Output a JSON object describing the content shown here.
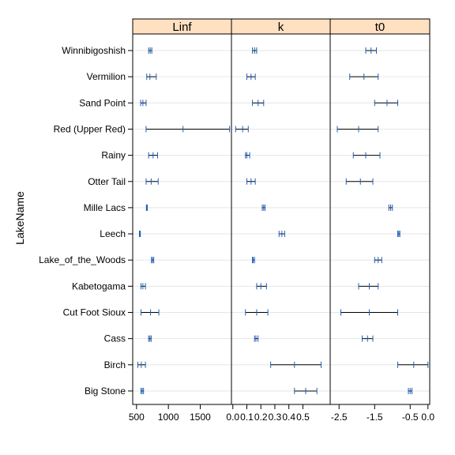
{
  "chart_data": {
    "type": "dotplot-interval",
    "ylabel": "LakeName",
    "lakes": [
      "Winnibigoshish",
      "Vermilion",
      "Sand Point",
      "Red (Upper Red)",
      "Rainy",
      "Otter Tail",
      "Mille Lacs",
      "Leech",
      "Lake_of_the_Woods",
      "Kabetogama",
      "Cut Foot Sioux",
      "Cass",
      "Birch",
      "Big Stone"
    ],
    "colors": {
      "strip": "#ffe0c0",
      "grid": "#e6e6e6",
      "interval": "#000000",
      "tick": "#1f5fb4"
    },
    "panels": [
      {
        "name": "Linf",
        "xlim": [
          440,
          1990
        ],
        "ticks": [
          {
            "v": 500,
            "label": "500"
          },
          {
            "v": 1000,
            "label": "1000"
          },
          {
            "v": 1500,
            "label": "1500"
          }
        ],
        "intervals": [
          [
            690,
            715,
            740
          ],
          [
            660,
            710,
            810
          ],
          [
            565,
            600,
            650
          ],
          [
            650,
            1230,
            1960
          ],
          [
            690,
            760,
            830
          ],
          [
            650,
            730,
            840
          ],
          [
            655,
            660,
            670
          ],
          [
            545,
            550,
            560
          ],
          [
            735,
            750,
            770
          ],
          [
            570,
            600,
            640
          ],
          [
            570,
            720,
            850
          ],
          [
            690,
            710,
            730
          ],
          [
            520,
            575,
            640
          ],
          [
            570,
            590,
            610
          ]
        ]
      },
      {
        "name": "k",
        "xlim": [
          -0.01,
          0.695
        ],
        "ticks": [
          {
            "v": 0.0,
            "label": "0.0"
          },
          {
            "v": 0.1,
            "label": "0.1"
          },
          {
            "v": 0.2,
            "label": "0.2"
          },
          {
            "v": 0.3,
            "label": "0.3"
          },
          {
            "v": 0.4,
            "label": "0.4"
          },
          {
            "v": 0.5,
            "label": "0.5"
          }
        ],
        "intervals": [
          [
            0.14,
            0.155,
            0.17
          ],
          [
            0.1,
            0.13,
            0.16
          ],
          [
            0.14,
            0.18,
            0.22
          ],
          [
            0.02,
            0.07,
            0.11
          ],
          [
            0.09,
            0.1,
            0.12
          ],
          [
            0.1,
            0.13,
            0.16
          ],
          [
            0.21,
            0.22,
            0.23
          ],
          [
            0.33,
            0.35,
            0.37
          ],
          [
            0.14,
            0.145,
            0.155
          ],
          [
            0.17,
            0.2,
            0.24
          ],
          [
            0.09,
            0.17,
            0.25
          ],
          [
            0.155,
            0.165,
            0.18
          ],
          [
            0.27,
            0.44,
            0.63
          ],
          [
            0.44,
            0.52,
            0.6
          ]
        ]
      },
      {
        "name": "t0",
        "xlim": [
          -2.75,
          0.05
        ],
        "ticks": [
          {
            "v": -2.5,
            "label": "-2.5"
          },
          {
            "v": -1.5,
            "label": "-1.5"
          },
          {
            "v": -0.5,
            "label": "-0.5"
          },
          {
            "v": 0.0,
            "label": "0.0"
          }
        ],
        "intervals": [
          [
            -1.75,
            -1.6,
            -1.45
          ],
          [
            -2.2,
            -1.8,
            -1.4
          ],
          [
            -1.5,
            -1.15,
            -0.85
          ],
          [
            -2.55,
            -1.95,
            -1.4
          ],
          [
            -2.1,
            -1.75,
            -1.35
          ],
          [
            -2.3,
            -1.9,
            -1.55
          ],
          [
            -1.1,
            -1.05,
            -1.0
          ],
          [
            -0.85,
            -0.82,
            -0.79
          ],
          [
            -1.5,
            -1.4,
            -1.3
          ],
          [
            -1.95,
            -1.65,
            -1.4
          ],
          [
            -2.45,
            -1.65,
            -0.85
          ],
          [
            -1.85,
            -1.7,
            -1.55
          ],
          [
            -0.85,
            -0.4,
            0.0
          ],
          [
            -0.55,
            -0.5,
            -0.45
          ]
        ]
      }
    ]
  }
}
